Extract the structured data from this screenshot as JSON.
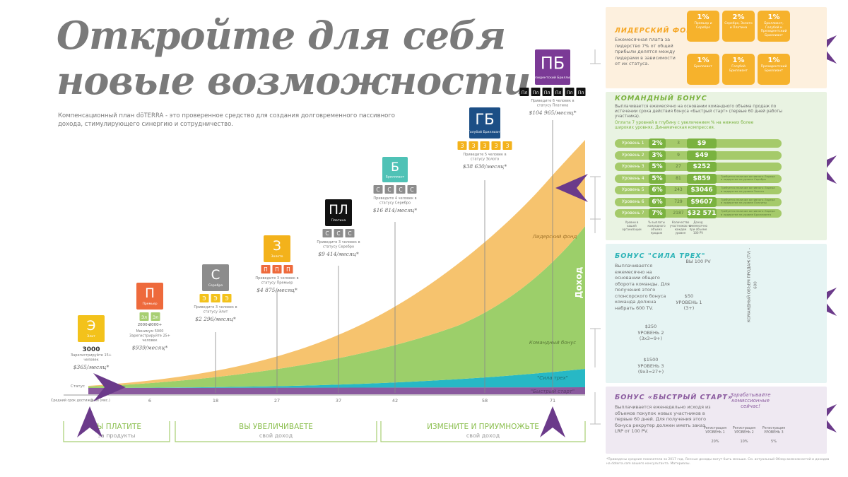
{
  "title_line1": "Откройте для себя",
  "title_line2": "новые возможности",
  "subtitle": "Компенсационный план dōTERRA - это проверенное средство для создания долговременного пассивного дохода, стимулирующего синергию и сотрудничество.",
  "axis": {
    "status_label": "Статус",
    "time_label": "Средний срок достижения (мес.)",
    "months": [
      "3",
      "6",
      "18",
      "27",
      "37",
      "42",
      "58",
      "71"
    ]
  },
  "bands": [
    {
      "label": "Лидерский фонд",
      "color": "#f6c36e"
    },
    {
      "label": "Командный бонус",
      "color": "#9ccf6a"
    },
    {
      "label": "\"Сила трех\"",
      "color": "#27b8c5"
    },
    {
      "label": "\"Быстрый старт\"",
      "color": "#8a5a9e"
    }
  ],
  "income_label": "Доход",
  "ranks": [
    {
      "abbr": "Э",
      "name": "Элит",
      "color": "#f3c21b",
      "req": "Зарегистрируйте 15+ человек",
      "count": "3000",
      "income": "$365/месяц*",
      "sub_boxes": []
    },
    {
      "abbr": "П",
      "name": "Премьер",
      "color": "#ee6a3c",
      "req": "Минимум 5000 Зарегистрируйте 25+ человек",
      "income": "$939/месяц*",
      "sub_boxes": [
        "Эл",
        "Эл"
      ],
      "sub_color": "#a8cf73",
      "counts": [
        "2000+",
        "2000+"
      ]
    },
    {
      "abbr": "С",
      "name": "Серебро",
      "color": "#8c8c8c",
      "req": "Приведите 3 человек в статусу Элит",
      "income": "$2 296/месяц*",
      "sub_boxes": [
        "Э",
        "Э",
        "Э"
      ],
      "sub_color": "#f3c21b"
    },
    {
      "abbr": "З",
      "name": "Золото",
      "color": "#f3b21b",
      "req": "Приведите 3 человек в статусу Премьер",
      "income": "$4 875/месяц*",
      "sub_boxes": [
        "П",
        "П",
        "П"
      ],
      "sub_color": "#ee6a3c"
    },
    {
      "abbr": "ПЛ",
      "name": "Платина",
      "color": "#111111",
      "req": "Приведите 3 человек в статусу Серебро",
      "income": "$9 414/месяц*",
      "sub_boxes": [
        "С",
        "С",
        "С"
      ],
      "sub_color": "#8c8c8c"
    },
    {
      "abbr": "Б",
      "name": "Бриллиант",
      "color": "#4fc2b6",
      "req": "Приведите 4 человек в статусу Серебро",
      "income": "$16 814/месяц*",
      "sub_boxes": [
        "С",
        "С",
        "С",
        "С"
      ],
      "sub_color": "#8c8c8c"
    },
    {
      "abbr": "ГБ",
      "name": "Голубой Бриллиант",
      "color": "#1c4f86",
      "req": "Приведите 5 человек в статусу Золото",
      "income": "$38 630/месяц*",
      "sub_boxes": [
        "З",
        "З",
        "З",
        "З",
        "З"
      ],
      "sub_color": "#f3b21b"
    },
    {
      "abbr": "ПБ",
      "name": "Президентский Бриллиант",
      "color": "#7b3a96",
      "req": "Приведите 6 человек в статусу Платина",
      "income": "$104 965/месяц*",
      "sub_boxes": [
        "Пл",
        "Пл",
        "Пл",
        "Пл",
        "Пл",
        "Пл"
      ],
      "sub_color": "#111111"
    }
  ],
  "bottom": [
    {
      "title": "ВЫ ПЛАТИТЕ",
      "sub": "за продукты"
    },
    {
      "title": "ВЫ УВЕЛИЧИВАЕТЕ",
      "sub": "свой доход"
    },
    {
      "title": "ИЗМЕНИТЕ И ПРИУМНОЖЬТЕ",
      "sub": "свой доход"
    }
  ],
  "leader": {
    "title": "ЛИДЕРСКИЙ ФОНД",
    "text": "Ежемесячная плата за лидерство 7% от общей прибыли делятся между лидерами в зависимости от их статуса.",
    "boxes": [
      {
        "pct": "1%",
        "name": "Премьер и Серебро"
      },
      {
        "pct": "2%",
        "name": "Серебро, Золото и Платина"
      },
      {
        "pct": "1%",
        "name": "Бриллиант, Голубой и Президентский Бриллиант"
      },
      {
        "pct": "1%",
        "name": "Бриллиант"
      },
      {
        "pct": "1%",
        "name": "Голубой Бриллиант"
      },
      {
        "pct": "1%",
        "name": "Президентский Бриллиант"
      }
    ],
    "color": "#f6a623"
  },
  "team": {
    "title": "КОМАНДНЫЙ БОНУС",
    "text1": "Выплачивается ежемесячно на основании командного объема продаж по истечении срока действия бонуса «Быстрый старт» (первые 60 дней работы участника).",
    "text2": "Оплата 7 уровней в глубину с увеличением % на нижних более широких уровнях. Динамическая компрессия.",
    "levels": [
      {
        "name": "Уровень 1",
        "pct": "2%",
        "count": "3",
        "amount": "$9",
        "desc": ""
      },
      {
        "name": "Уровень 2",
        "pct": "3%",
        "count": "9",
        "amount": "$49",
        "desc": ""
      },
      {
        "name": "Уровень 3",
        "pct": "5%",
        "count": "27",
        "amount": "$252",
        "desc": ""
      },
      {
        "name": "Уровень 4",
        "pct": "5%",
        "count": "81",
        "amount": "$859",
        "desc": "Требуется наличие активного Лидера в лидерстве на уровне Серебра"
      },
      {
        "name": "Уровень 5",
        "pct": "6%",
        "count": "243",
        "amount": "$3046",
        "desc": "Требуется наличие активного Лидера в лидерстве на уровне Золота"
      },
      {
        "name": "Уровень 6",
        "pct": "6%",
        "count": "729",
        "amount": "$9607",
        "desc": "Требуется наличие активного Лидера в лидерстве на уровне Платины"
      },
      {
        "name": "Уровень 7",
        "pct": "7%",
        "count": "2187",
        "amount": "$32 571",
        "desc": "Требуется наличие активного Лидера в лидерстве на уровне Бриллианта"
      }
    ],
    "footer": [
      "Уровни в вашей организации",
      "% выплаты командного объема продаж",
      "Количество участников на каждом уровне",
      "Доход ежемесячно при объеме 100 PV"
    ],
    "color": "#7ab23f"
  },
  "three": {
    "title": "БОНУС \"СИЛА ТРЕХ\"",
    "text": "Выплачивается ежемесячно на основании общего оборота команды. Для получения этого спонсорского бонуса команда должна набрать 600 TV.",
    "you": "ВЫ 100 PV",
    "lvl1": "$50 УРОВЕНЬ 1 (3+)",
    "lvl2": "$250 УРОВЕНЬ 2 (3x3=9+)",
    "lvl3": "$1500 УРОВЕНЬ 3 (9x3=27+)",
    "side": "КОМАНДНЫЙ ОБЪЕМ ПРОДАЖ (TV) - 600",
    "color": "#2db3b7"
  },
  "fast": {
    "title": "БОНУС «БЫСТРЫЙ СТАРТ»",
    "question": "Зарабатывайте комиссионные сейчас!",
    "text": "Выплачивается еженедельно исходя из объемов покупок новых участников в первые 60 дней. Для получения этого бонуса рекрутер должен иметь заказ LRP от 100 PV.",
    "levels": [
      {
        "label": "Регистрация УРОВЕНЬ 1",
        "pct": "20%"
      },
      {
        "label": "Регистрация УРОВЕНЬ 2",
        "pct": "10%"
      },
      {
        "label": "Регистрация УРОВЕНЬ 3",
        "pct": "5%"
      }
    ],
    "color": "#8a5a9e"
  },
  "footnote": "*Приведены средние показатели за 2017 год. Личные доходы могут быть меньше. См. актуальный Обзор возможностей и доходов на doterra.com вашего консультанта. Материалы.",
  "arrow_color": "#6b3a8a"
}
